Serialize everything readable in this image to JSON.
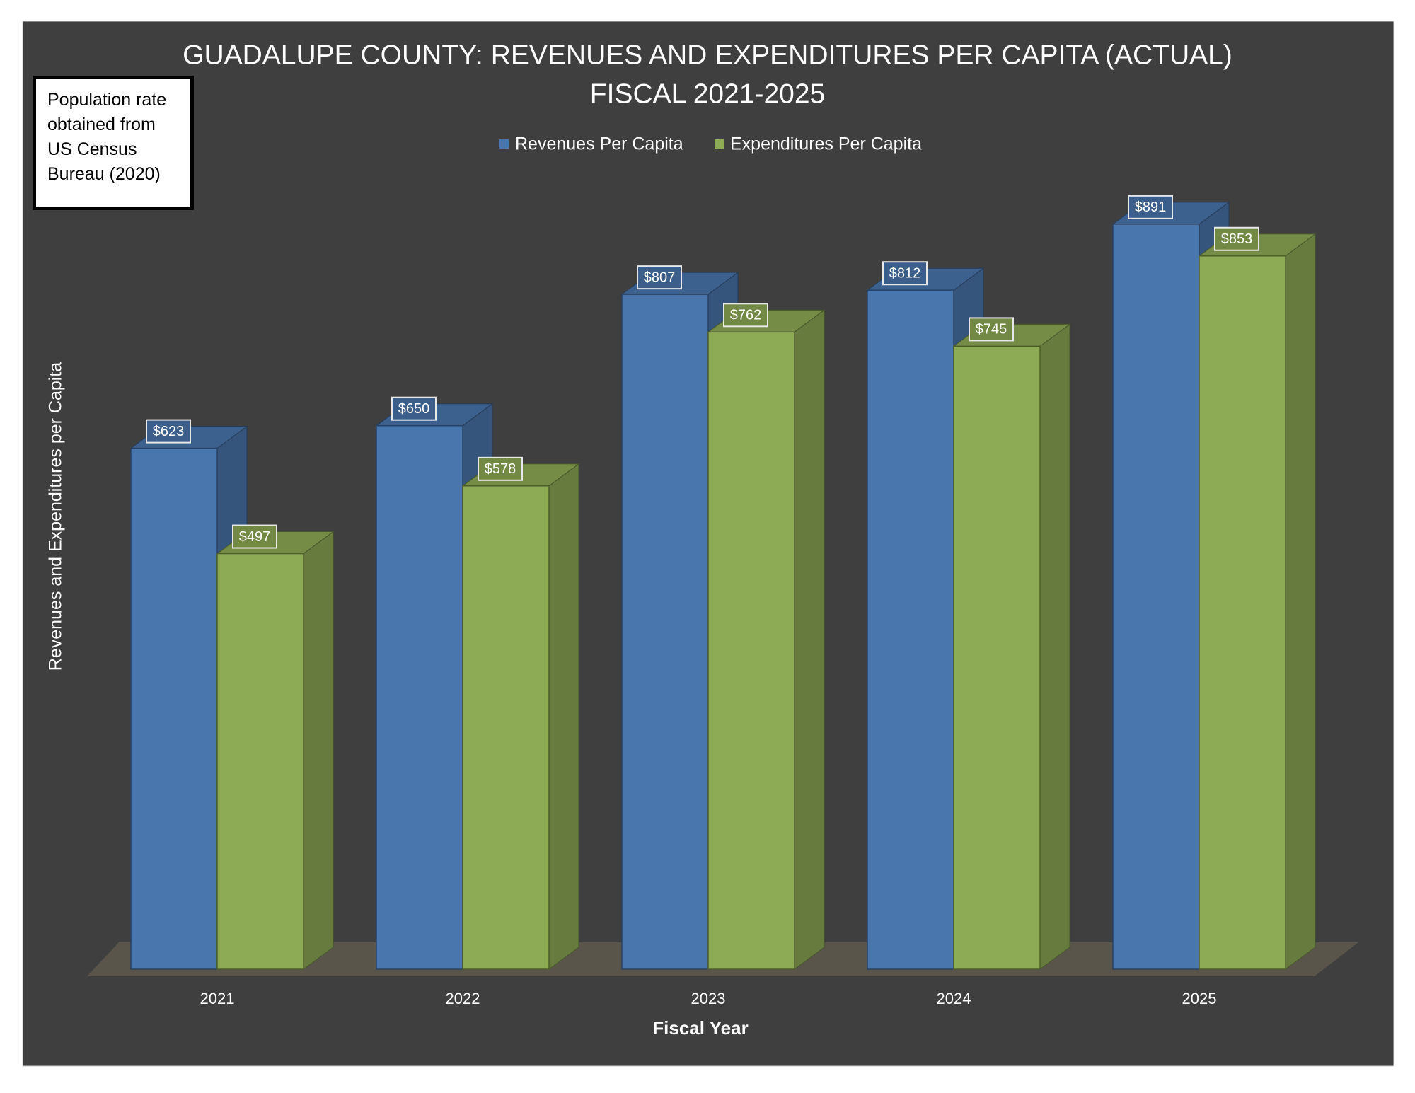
{
  "chart_data": {
    "type": "bar3d",
    "title": "GUADALUPE COUNTY: REVENUES AND EXPENDITURES PER CAPITA  (ACTUAL)",
    "subtitle": "FISCAL 2021-2025",
    "note": "Population rate obtained from US Census Bureau (2020)",
    "x_label": "Fiscal Year",
    "y_label": "Revenues and Expenditures per Capita",
    "categories": [
      "2021",
      "2022",
      "2023",
      "2024",
      "2025"
    ],
    "series": [
      {
        "name": "Revenues Per Capita",
        "color": "#4a76ae",
        "values": [
          623,
          650,
          807,
          812,
          891
        ],
        "value_labels": [
          "$623",
          "$650",
          "$807",
          "$812",
          "$891"
        ]
      },
      {
        "name": "Expenditures Per Capita",
        "color": "#8dab55",
        "values": [
          497,
          578,
          762,
          745,
          853
        ],
        "value_labels": [
          "$497",
          "$578",
          "$762",
          "$745",
          "$853"
        ]
      }
    ],
    "legend": "top"
  }
}
